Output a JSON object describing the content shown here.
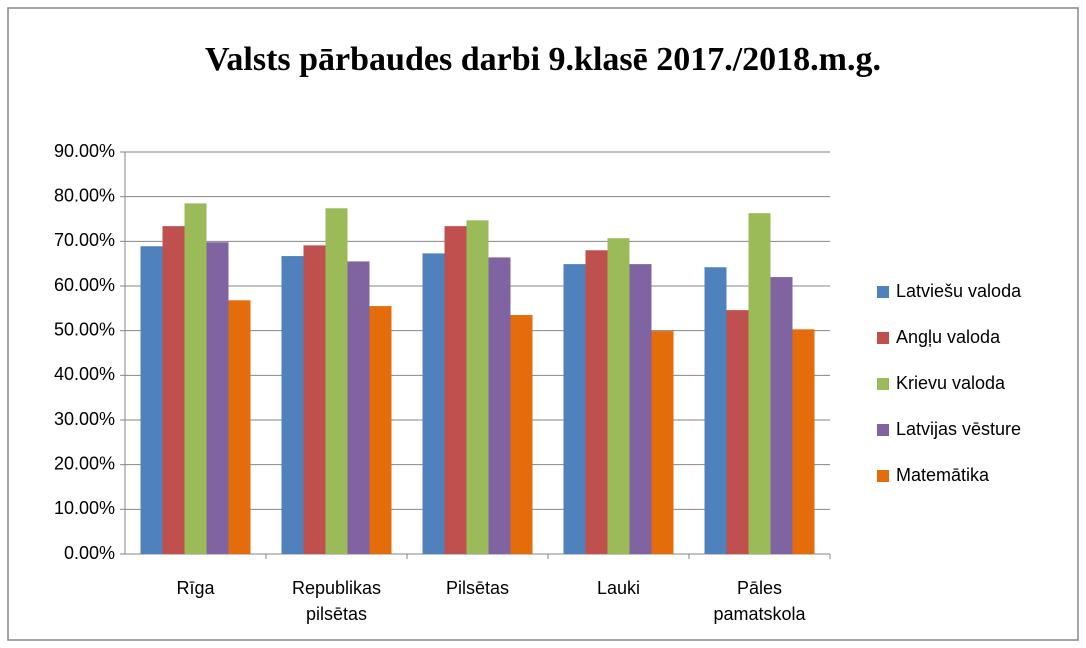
{
  "chart_data": {
    "type": "bar",
    "title": "Valsts pārbaudes darbi  9.klasē 2017./2018.m.g.",
    "categories": [
      "Rīga",
      "Republikas pilsētas",
      "Pilsētas",
      "Lauki",
      "Pāles pamatskola"
    ],
    "series": [
      {
        "name": "Latviešu valoda",
        "color": "#4f81bd",
        "values": [
          68.9,
          66.7,
          67.3,
          64.9,
          64.2
        ]
      },
      {
        "name": "Angļu valoda",
        "color": "#c0504d",
        "values": [
          73.4,
          69.1,
          73.4,
          68.0,
          54.6
        ]
      },
      {
        "name": "Krievu valoda",
        "color": "#9bbb59",
        "values": [
          78.5,
          77.4,
          74.7,
          70.7,
          76.3
        ]
      },
      {
        "name": "Latvijas vēsture",
        "color": "#8064a2",
        "values": [
          69.8,
          65.5,
          66.4,
          64.9,
          62.0
        ]
      },
      {
        "name": "Matemātika",
        "color": "#e46c0a",
        "values": [
          56.8,
          55.5,
          53.5,
          49.9,
          50.3
        ]
      }
    ],
    "ylim": [
      0,
      90
    ],
    "yticks": [
      {
        "value": 0,
        "label": "0.00%"
      },
      {
        "value": 10,
        "label": "10.00%"
      },
      {
        "value": 20,
        "label": "20.00%"
      },
      {
        "value": 30,
        "label": "30.00%"
      },
      {
        "value": 40,
        "label": "40.00%"
      },
      {
        "value": 50,
        "label": "50.00%"
      },
      {
        "value": 60,
        "label": "60.00%"
      },
      {
        "value": 70,
        "label": "70.00%"
      },
      {
        "value": 80,
        "label": "80.00%"
      },
      {
        "value": 90,
        "label": "90.00%"
      }
    ],
    "grid": true,
    "legend": "right"
  }
}
